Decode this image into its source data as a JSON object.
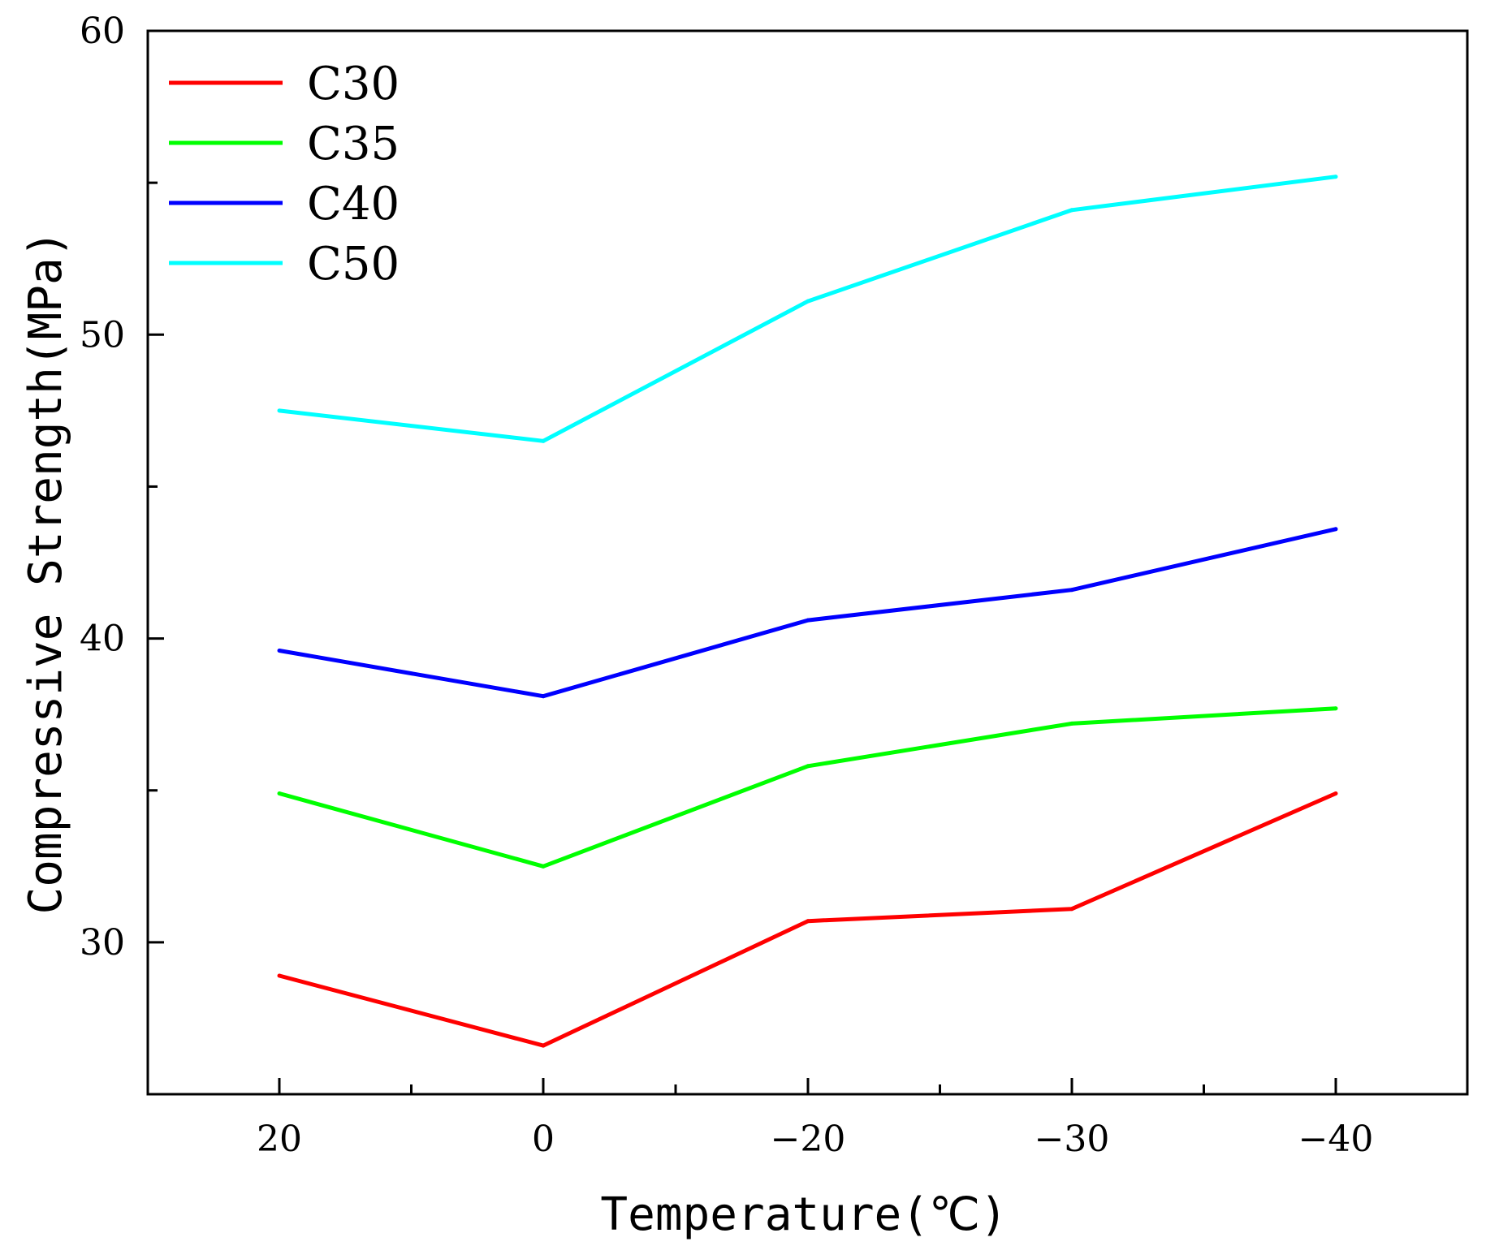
{
  "chart_data": {
    "type": "line",
    "title": "",
    "xlabel": "Temperature(℃)",
    "ylabel": "Compressive Strength(MPa)",
    "categories": [
      "20",
      "0",
      "−20",
      "−30",
      "−40"
    ],
    "ylim": [
      25,
      60
    ],
    "yticks": [
      "30",
      "40",
      "50",
      "60"
    ],
    "legend_position": "top-left",
    "grid": false,
    "series": [
      {
        "name": "C30",
        "color": "#ff0000",
        "values": [
          28.9,
          26.6,
          30.7,
          31.1,
          34.9
        ]
      },
      {
        "name": "C35",
        "color": "#00ff00",
        "values": [
          34.9,
          32.5,
          35.8,
          37.2,
          37.7
        ]
      },
      {
        "name": "C40",
        "color": "#0000ff",
        "values": [
          39.6,
          38.1,
          40.6,
          41.6,
          43.6
        ]
      },
      {
        "name": "C50",
        "color": "#00ffff",
        "values": [
          47.5,
          46.5,
          51.1,
          54.1,
          55.2
        ]
      }
    ]
  }
}
